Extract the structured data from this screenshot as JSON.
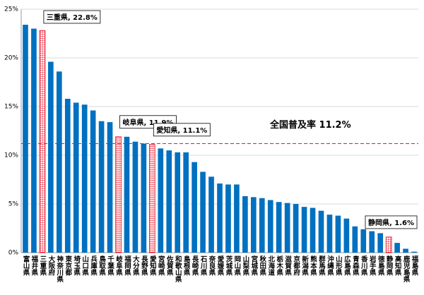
{
  "chart_data": {
    "type": "bar",
    "categories": [
      "富山県",
      "福井県",
      "三重県",
      "大阪府",
      "神奈川県",
      "東京都",
      "埼玉県",
      "山口県",
      "兵庫県",
      "鳥取県",
      "千葉県",
      "岐阜県",
      "福岡県",
      "大分県",
      "長野県",
      "愛知県",
      "宮崎県",
      "佐賀県",
      "和歌山県",
      "島根県",
      "長崎県",
      "石川県",
      "奈良県",
      "愛媛県",
      "茨城県",
      "岡山県",
      "山梨県",
      "宮城県",
      "秋田県",
      "北海道",
      "栃木県",
      "滋賀県",
      "京都府",
      "新潟県",
      "熊本県",
      "群馬県",
      "沖縄県",
      "山形県",
      "広島県",
      "青森県",
      "香川県",
      "岩手県",
      "徳島県",
      "静岡県",
      "高知県",
      "鹿児島県",
      "福島県"
    ],
    "values": [
      23.4,
      23.0,
      22.8,
      19.6,
      18.6,
      15.8,
      15.4,
      15.2,
      14.6,
      13.5,
      13.4,
      11.9,
      11.9,
      11.4,
      11.2,
      11.1,
      10.7,
      10.5,
      10.3,
      10.3,
      9.3,
      8.3,
      7.8,
      7.1,
      7.0,
      7.0,
      5.8,
      5.7,
      5.6,
      5.4,
      5.2,
      5.1,
      5.0,
      4.7,
      4.6,
      4.3,
      3.9,
      3.8,
      3.5,
      2.7,
      2.4,
      2.2,
      2.0,
      1.6,
      1.0,
      0.4,
      0.1
    ],
    "value_labels": [
      null,
      null,
      "三重県, 22.8%",
      null,
      null,
      null,
      null,
      null,
      null,
      null,
      null,
      "岐阜県, 11.9%",
      null,
      null,
      null,
      "愛知県, 11.1%",
      null,
      null,
      null,
      null,
      null,
      null,
      null,
      null,
      null,
      null,
      null,
      null,
      null,
      null,
      null,
      null,
      null,
      null,
      null,
      null,
      null,
      null,
      null,
      null,
      null,
      null,
      null,
      "静岡県, 1.6%",
      null,
      null,
      null
    ],
    "color": "#0070c0",
    "highlight_color": "#e8192c",
    "ylim": [
      0,
      25
    ],
    "yticks": [
      {
        "value": 0,
        "label": "0%"
      },
      {
        "value": 5,
        "label": "5%"
      },
      {
        "value": 10,
        "label": "10%"
      },
      {
        "value": 15,
        "label": "15%"
      },
      {
        "value": 20,
        "label": "20%"
      },
      {
        "value": 25,
        "label": "25%"
      }
    ],
    "grid": true,
    "reference_line": {
      "value": 11.2,
      "label": "全国普及率 11.2%",
      "color": "#e8192c"
    }
  }
}
